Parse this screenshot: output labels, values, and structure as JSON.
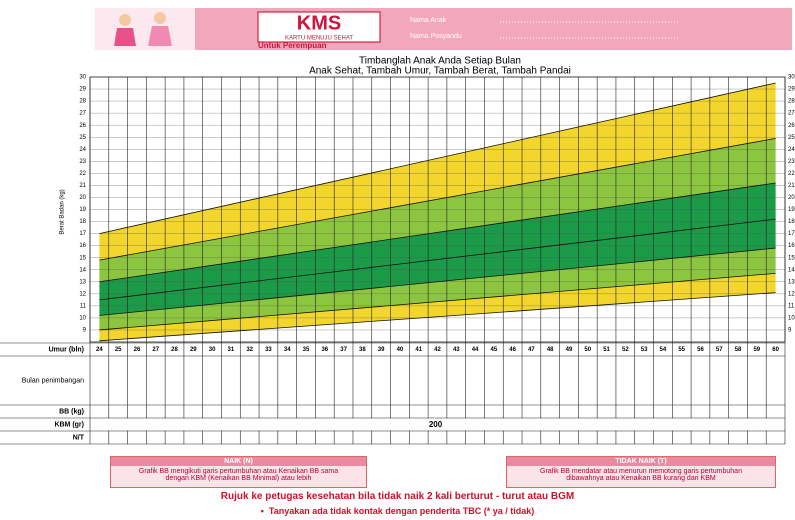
{
  "header": {
    "logo": "KMS",
    "logo_sub": "KARTU MENUJU SEHAT",
    "gender": "Untuk Perempuan",
    "name_label": "Nama Anak",
    "posyandu_label": "Nama Posyandu"
  },
  "chart_data": {
    "type": "area",
    "title": "Timbanglah Anak Anda Setiap Bulan",
    "subtitle": "Anak Sehat, Tambah Umur, Tambah Berat, Tambah Pandai",
    "y_label": "Berat Badan (kg)",
    "x": [
      24,
      60
    ],
    "xlim": [
      23.5,
      60.5
    ],
    "xticks": [
      24,
      25,
      26,
      27,
      28,
      29,
      30,
      31,
      32,
      33,
      34,
      35,
      36,
      37,
      38,
      39,
      40,
      41,
      42,
      43,
      44,
      45,
      46,
      47,
      48,
      49,
      50,
      51,
      52,
      53,
      54,
      55,
      56,
      57,
      58,
      59,
      60
    ],
    "ylim": [
      8,
      30
    ],
    "yticks": [
      9,
      10,
      11,
      12,
      13,
      14,
      15,
      16,
      17,
      18,
      19,
      20,
      21,
      22,
      23,
      24,
      25,
      26,
      27,
      28,
      29,
      30
    ],
    "series": [
      {
        "values": [
          8.1,
          12.1
        ]
      },
      {
        "values": [
          9.0,
          13.7
        ]
      },
      {
        "values": [
          10.2,
          15.8
        ]
      },
      {
        "values": [
          11.5,
          18.2
        ]
      },
      {
        "values": [
          13.0,
          21.2
        ]
      },
      {
        "values": [
          14.8,
          24.9
        ]
      },
      {
        "values": [
          17.0,
          29.5
        ]
      }
    ],
    "band_colors": [
      "#f3d62b",
      "#8cc63e",
      "#1b9a48",
      "#1b9a48",
      "#8cc63e",
      "#f3d62b"
    ],
    "line_color": "#111111",
    "grid": true
  },
  "table": {
    "row_labels": [
      "Umur (bln)",
      "Bulan penimbangan",
      "BB (kg)",
      "KBM (gr)",
      "N/T"
    ],
    "kbm": 200
  },
  "legend_boxes": [
    {
      "title": "NAIK (N)",
      "text": "Grafik BB mengikuti garis pertumbuhan atau Kenaikan BB sama dengan KBM (Kenaikan BB Minimal) atau lebih"
    },
    {
      "title": "TIDAK NAIK (T)",
      "text": "Grafik BB mendatar atau menurun memotong garis pertumbuhan dibawahnya atau Kenaikan BB kurang dari KBM"
    }
  ],
  "footer": {
    "warning": "Rujuk ke petugas kesehatan bila tidak naik 2 kali berturut - turut atau BGM",
    "bullet": "Tanyakan ada tidak kontak dengan penderita TBC (* ya / tidak)"
  }
}
